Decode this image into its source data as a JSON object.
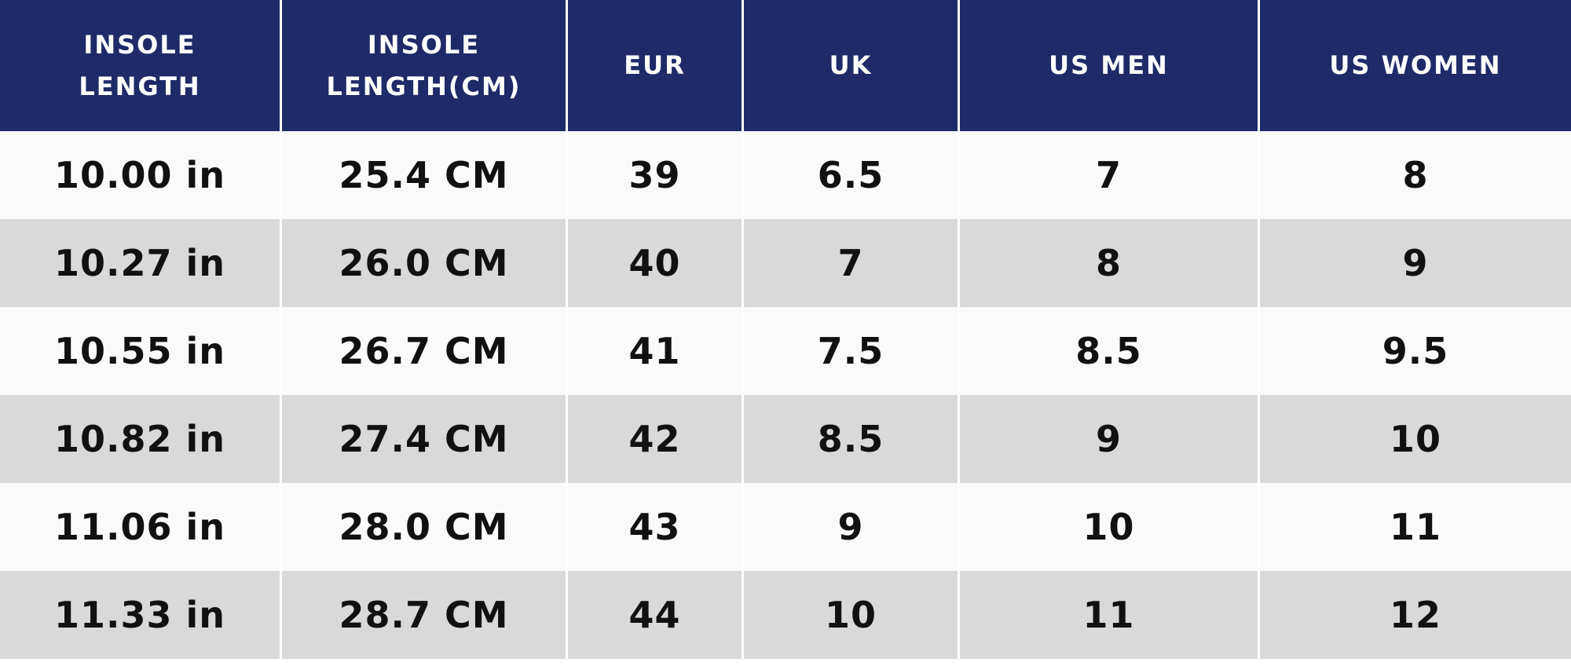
{
  "colors": {
    "header_bg": "#1f2a68",
    "header_text": "#ffffff",
    "row_light": "#fafafa",
    "row_dark": "#d9d9d9",
    "divider": "#ffffff",
    "cell_text": "#111111"
  },
  "chart_data": {
    "type": "table",
    "title": "",
    "columns": [
      {
        "id": "insole_in",
        "label": "INSOLE\nLENGTH"
      },
      {
        "id": "insole_cm",
        "label": "INSOLE\nLENGTH(CM)"
      },
      {
        "id": "eur",
        "label": "EUR"
      },
      {
        "id": "uk",
        "label": "UK"
      },
      {
        "id": "us_men",
        "label": "US MEN"
      },
      {
        "id": "us_women",
        "label": "US WOMEN"
      }
    ],
    "rows": [
      {
        "insole_in": "10.00 in",
        "insole_cm": "25.4 CM",
        "eur": "39",
        "uk": "6.5",
        "us_men": "7",
        "us_women": "8"
      },
      {
        "insole_in": "10.27 in",
        "insole_cm": "26.0 CM",
        "eur": "40",
        "uk": "7",
        "us_men": "8",
        "us_women": "9"
      },
      {
        "insole_in": "10.55 in",
        "insole_cm": "26.7 CM",
        "eur": "41",
        "uk": "7.5",
        "us_men": "8.5",
        "us_women": "9.5"
      },
      {
        "insole_in": "10.82 in",
        "insole_cm": "27.4 CM",
        "eur": "42",
        "uk": "8.5",
        "us_men": "9",
        "us_women": "10"
      },
      {
        "insole_in": "11.06 in",
        "insole_cm": "28.0 CM",
        "eur": "43",
        "uk": "9",
        "us_men": "10",
        "us_women": "11"
      },
      {
        "insole_in": "11.33 in",
        "insole_cm": "28.7 CM",
        "eur": "44",
        "uk": "10",
        "us_men": "11",
        "us_women": "12"
      }
    ]
  }
}
